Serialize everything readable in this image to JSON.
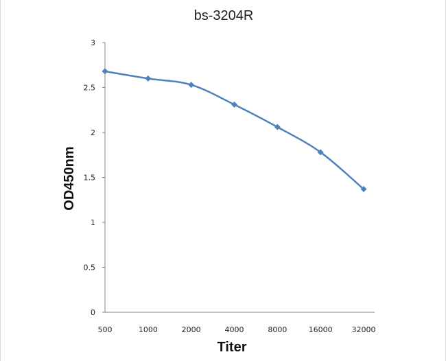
{
  "chart_data": {
    "type": "line",
    "title": "bs-3204R",
    "xlabel": "Titer",
    "ylabel": "OD450nm",
    "categories": [
      "500",
      "1000",
      "2000",
      "4000",
      "8000",
      "16000",
      "32000"
    ],
    "series": [
      {
        "values": [
          2.68,
          2.6,
          2.53,
          2.31,
          2.06,
          1.78,
          1.37
        ],
        "color": "#4f81bd",
        "marker": "diamond"
      }
    ],
    "yticks": [
      "0",
      "0.5",
      "1",
      "1.5",
      "2",
      "2.5",
      "3"
    ],
    "ylim": [
      0,
      3
    ],
    "grid": false,
    "legend": "none"
  }
}
